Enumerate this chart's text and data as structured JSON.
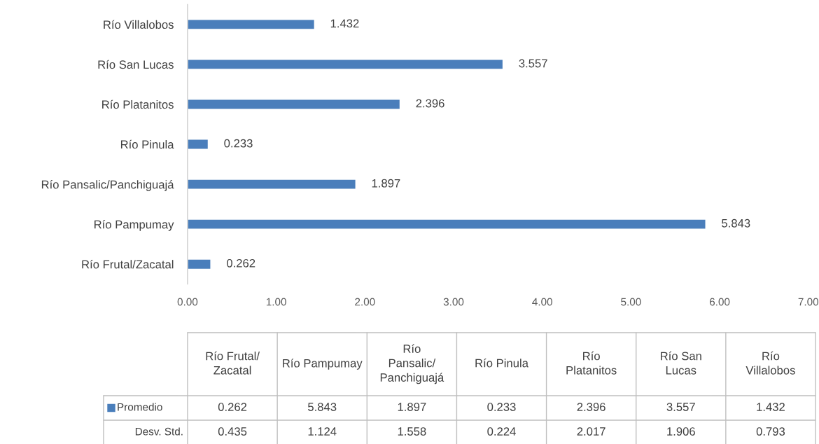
{
  "chart_data": {
    "type": "bar",
    "orientation": "horizontal",
    "categories": [
      "Río Villalobos",
      "Río San Lucas",
      "Río Platanitos",
      "Río Pinula",
      "Río Pansalic/Panchiguajá",
      "Río Pampumay",
      "Río Frutal/Zacatal"
    ],
    "series": [
      {
        "name": "Promedio",
        "color": "#4a7ebb",
        "values": [
          1.432,
          3.557,
          2.396,
          0.233,
          1.897,
          5.843,
          0.262
        ],
        "value_labels": [
          "1.432",
          "3.557",
          "2.396",
          "0.233",
          "1.897",
          "5.843",
          "0.262"
        ]
      }
    ],
    "annotations": [
      "Desv. Std.",
      "0.435",
      "1.124",
      "1.558",
      "0.224",
      "2.017",
      "1.906",
      "0.793"
    ],
    "xlim": [
      0,
      7
    ],
    "xticks": [
      {
        "value": 0,
        "label": "0.00"
      },
      {
        "value": 1,
        "label": "1.00"
      },
      {
        "value": 2,
        "label": "2.00"
      },
      {
        "value": 3,
        "label": "3.00"
      },
      {
        "value": 4,
        "label": "4.00"
      },
      {
        "value": 5,
        "label": "5.00"
      },
      {
        "value": 6,
        "label": "6.00"
      },
      {
        "value": 7,
        "label": "7.00"
      }
    ],
    "grid": false,
    "legend": "bottom"
  }
}
